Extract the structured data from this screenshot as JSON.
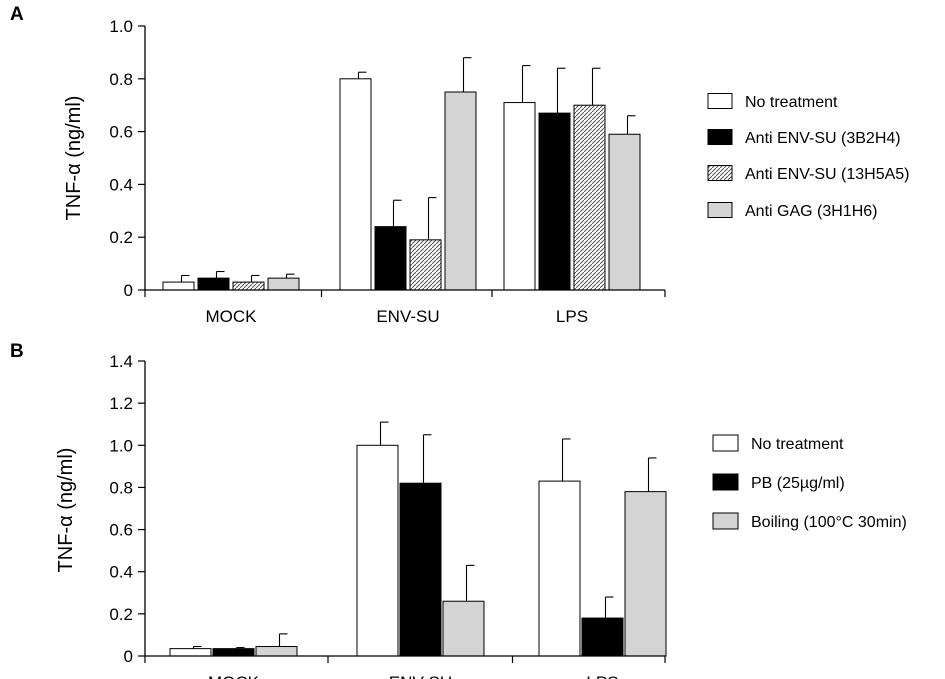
{
  "colors": {
    "no_treatment": "#ffffff",
    "black_bar": "#000000",
    "light_gray": "#d4d4d4",
    "hatch_bg": "#ffffff",
    "hatch_line": "#555555"
  },
  "chart_data": [
    {
      "type": "bar",
      "panel_label": "A",
      "ylabel": "TNF-α (ng/ml)",
      "ylim": [
        0,
        1.0
      ],
      "yticks": [
        0,
        0.2,
        0.4,
        0.6,
        0.8,
        1.0
      ],
      "ytick_labels": [
        "0",
        "0.2",
        "0.4",
        "0.6",
        "0.8",
        "1.0"
      ],
      "categories": [
        "MOCK",
        "ENV-SU",
        "LPS"
      ],
      "legend_position": "right",
      "series": [
        {
          "name": "No treatment",
          "fill": "white",
          "values": [
            0.03,
            0.8,
            0.71
          ],
          "errors": [
            0.025,
            0.025,
            0.14
          ]
        },
        {
          "name": "Anti ENV-SU (3B2H4)",
          "fill": "black",
          "values": [
            0.045,
            0.24,
            0.67
          ],
          "errors": [
            0.025,
            0.1,
            0.17
          ]
        },
        {
          "name": "Anti ENV-SU (13H5A5)",
          "fill": "hatch",
          "values": [
            0.03,
            0.19,
            0.7
          ],
          "errors": [
            0.025,
            0.16,
            0.14
          ]
        },
        {
          "name": "Anti GAG (3H1H6)",
          "fill": "gray",
          "values": [
            0.045,
            0.75,
            0.59
          ],
          "errors": [
            0.015,
            0.13,
            0.07
          ]
        }
      ]
    },
    {
      "type": "bar",
      "panel_label": "B",
      "ylabel": "TNF-α (ng/ml)",
      "ylim": [
        0,
        1.4
      ],
      "yticks": [
        0,
        0.2,
        0.4,
        0.6,
        0.8,
        1.0,
        1.2,
        1.4
      ],
      "ytick_labels": [
        "0",
        "0.2",
        "0.4",
        "0.6",
        "0.8",
        "1.0",
        "1.2",
        "1.4"
      ],
      "categories": [
        "MOCK",
        "ENV-SU",
        "LPS"
      ],
      "legend_position": "right",
      "series": [
        {
          "name": "No treatment",
          "fill": "white",
          "values": [
            0.035,
            1.0,
            0.83
          ],
          "errors": [
            0.01,
            0.11,
            0.2
          ]
        },
        {
          "name": "PB (25µg/ml)",
          "fill": "black",
          "values": [
            0.035,
            0.82,
            0.18
          ],
          "errors": [
            0.005,
            0.23,
            0.1
          ]
        },
        {
          "name": "Boiling (100°C 30min)",
          "fill": "gray",
          "values": [
            0.045,
            0.26,
            0.78
          ],
          "errors": [
            0.06,
            0.17,
            0.16
          ]
        }
      ]
    }
  ]
}
